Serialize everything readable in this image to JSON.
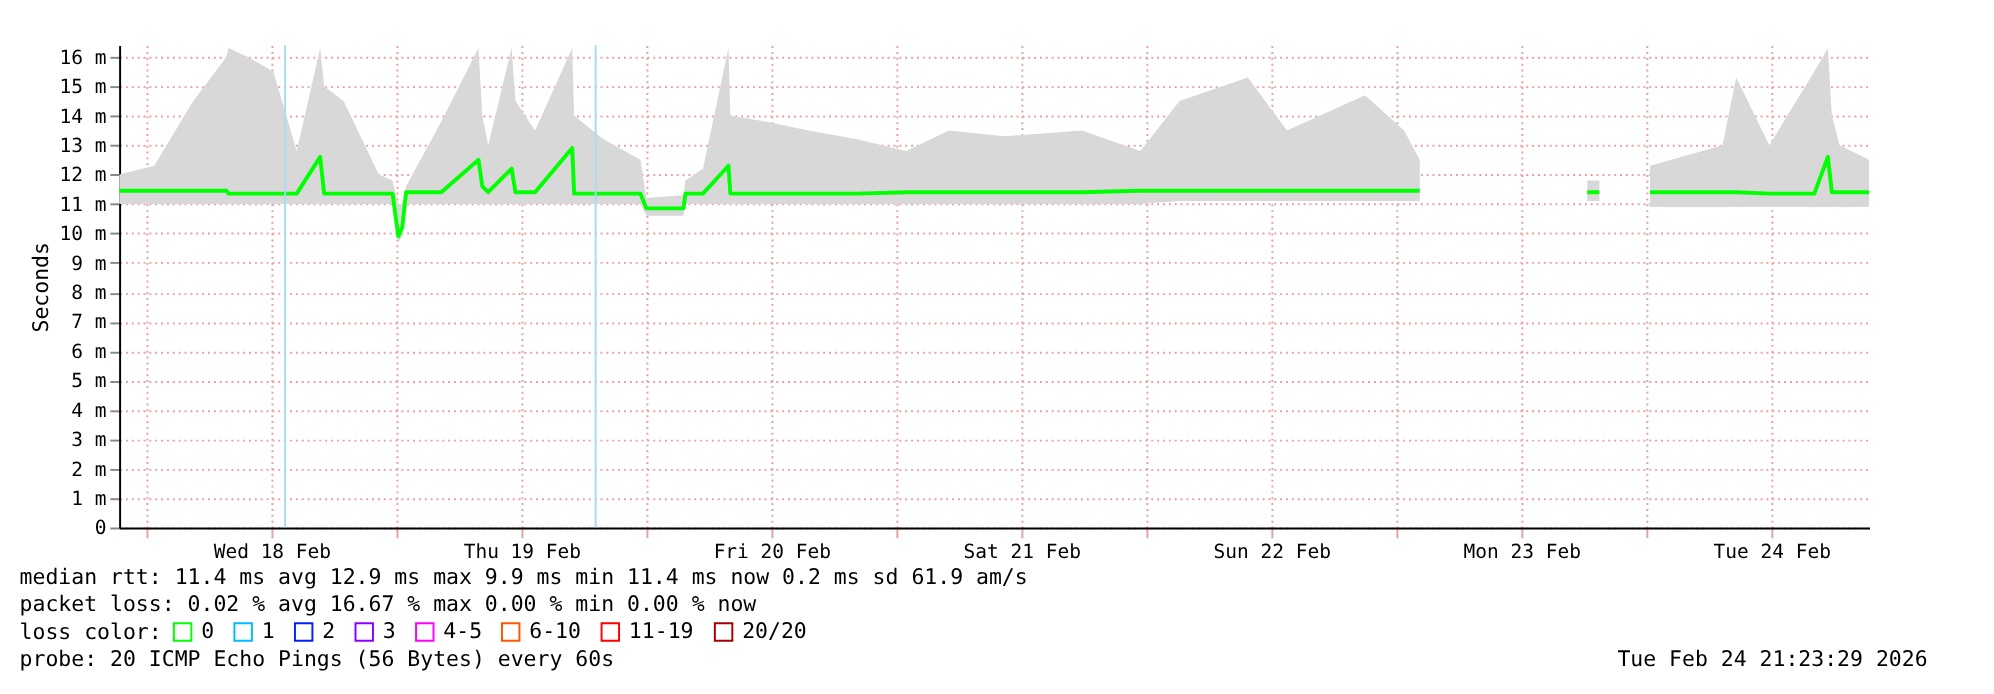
{
  "chart_data": {
    "type": "line",
    "ylabel": "Seconds",
    "xlim": [
      "2026-02-17T21:23",
      "2026-02-24T21:23"
    ],
    "xticks": [
      {
        "value": "2026-02-18T00:00",
        "label": null
      },
      {
        "value": "2026-02-18T12:00",
        "label": "Wed 18 Feb"
      },
      {
        "value": "2026-02-19T00:00",
        "label": null
      },
      {
        "value": "2026-02-19T12:00",
        "label": "Thu 19 Feb"
      },
      {
        "value": "2026-02-20T00:00",
        "label": null
      },
      {
        "value": "2026-02-20T12:00",
        "label": "Fri 20 Feb"
      },
      {
        "value": "2026-02-21T00:00",
        "label": null
      },
      {
        "value": "2026-02-21T12:00",
        "label": "Sat 21 Feb"
      },
      {
        "value": "2026-02-22T00:00",
        "label": null
      },
      {
        "value": "2026-02-22T12:00",
        "label": "Sun 22 Feb"
      },
      {
        "value": "2026-02-23T00:00",
        "label": null
      },
      {
        "value": "2026-02-23T12:00",
        "label": "Mon 23 Feb"
      },
      {
        "value": "2026-02-24T00:00",
        "label": null
      },
      {
        "value": "2026-02-24T12:00",
        "label": "Tue 24 Feb"
      }
    ],
    "ylim": [
      0,
      16.4
    ],
    "yticks": [
      0,
      {
        "value": 1,
        "label": "1 m"
      },
      {
        "value": 2,
        "label": "2 m"
      },
      {
        "value": 3,
        "label": "3 m"
      },
      {
        "value": 4,
        "label": "4 m"
      },
      {
        "value": 5,
        "label": "5 m"
      },
      {
        "value": 6,
        "label": "6 m"
      },
      {
        "value": 7,
        "label": "7 m"
      },
      {
        "value": 8,
        "label": "8 m"
      },
      {
        "value": 9,
        "label": "9 m"
      },
      {
        "value": 10,
        "label": "10 m"
      },
      {
        "value": 11,
        "label": "11 m"
      },
      {
        "value": 12,
        "label": "12 m"
      },
      {
        "value": 13,
        "label": "13 m"
      },
      {
        "value": 14,
        "label": "14 m"
      },
      {
        "value": 15,
        "label": "15 m"
      },
      {
        "value": 16,
        "label": "16 m"
      }
    ],
    "grid": true,
    "legend": "bottom left",
    "legend_title": "loss color:",
    "series": [
      {
        "name": "0",
        "color": "#00ff00",
        "x": [
          "2026-02-17T21:23",
          "2026-02-18T00:45",
          "2026-02-18T04:30",
          "2026-02-18T07:41",
          "2026-02-18T07:53",
          "2026-02-18T09:45",
          "2026-02-18T12:11",
          "2026-02-18T14:26",
          "2026-02-18T16:41",
          "2026-02-18T17:04",
          "2026-02-18T18:56",
          "2026-02-18T22:19",
          "2026-02-18T23:38",
          "2026-02-19T00:11",
          "2026-02-19T00:34",
          "2026-02-19T00:56",
          "2026-02-19T04:19",
          "2026-02-19T07:53",
          "2026-02-19T08:15",
          "2026-02-19T08:49",
          "2026-02-19T11:04",
          "2026-02-19T11:26",
          "2026-02-19T13:19",
          "2026-02-19T16:53",
          "2026-02-19T17:04",
          "2026-02-19T19:53",
          "2026-02-19T23:26",
          "2026-02-20T00:00",
          "2026-02-20T03:34",
          "2026-02-20T03:45",
          "2026-02-20T05:26",
          "2026-02-20T07:53",
          "2026-02-20T08:04",
          "2026-02-20T11:26",
          "2026-02-20T15:34",
          "2026-02-20T20:15",
          "2026-02-21T00:56",
          "2026-02-21T05:04",
          "2026-02-21T10:19",
          "2026-02-21T17:49",
          "2026-02-21T23:26",
          "2026-02-22T03:11",
          "2026-02-22T09:45",
          "2026-02-22T13:30",
          "2026-02-22T21:00",
          "2026-02-23T00:45",
          "2026-02-23T02:15",
          "2026-02-23T03:00",
          "2026-02-23T18:20",
          "2026-02-23T19:30",
          "2026-02-23T20:00",
          "2026-02-24T00:22",
          "2026-02-24T07:19",
          "2026-02-24T08:38",
          "2026-02-24T11:49",
          "2026-02-24T16:08",
          "2026-02-24T17:26",
          "2026-02-24T17:49",
          "2026-02-24T18:34",
          "2026-02-24T21:23"
        ],
        "values": [
          11.45,
          11.45,
          11.45,
          11.45,
          11.35,
          11.35,
          11.35,
          11.35,
          12.6,
          11.35,
          11.35,
          11.35,
          11.35,
          9.9,
          10.2,
          11.4,
          11.4,
          12.5,
          11.6,
          11.4,
          12.2,
          11.4,
          11.4,
          12.9,
          11.35,
          11.35,
          11.35,
          10.85,
          10.85,
          11.35,
          11.35,
          12.3,
          11.35,
          11.35,
          11.35,
          11.35,
          11.4,
          11.4,
          11.4,
          11.4,
          11.45,
          11.45,
          11.45,
          11.45,
          11.45,
          11.45,
          11.45,
          null,
          11.4,
          11.4,
          null,
          11.4,
          11.4,
          11.4,
          11.35,
          11.35,
          12.6,
          11.4,
          11.4,
          11.4
        ],
        "lower": [
          11.0,
          11.0,
          11.0,
          11.0,
          11.0,
          11.0,
          11.0,
          11.0,
          11.0,
          11.0,
          11.0,
          11.0,
          11.0,
          9.7,
          9.9,
          11.0,
          11.0,
          11.0,
          11.0,
          11.0,
          11.0,
          11.0,
          11.0,
          11.0,
          11.0,
          11.0,
          11.0,
          10.6,
          10.6,
          11.0,
          11.0,
          11.0,
          11.0,
          11.0,
          11.0,
          11.0,
          11.0,
          11.0,
          11.0,
          11.0,
          11.0,
          11.1,
          11.1,
          11.1,
          11.1,
          11.1,
          11.1,
          null,
          11.1,
          11.1,
          null,
          10.9,
          10.9,
          10.9,
          10.9,
          10.9,
          10.9,
          10.9,
          10.9,
          10.9
        ],
        "upper": [
          12.0,
          12.3,
          14.5,
          16.0,
          16.3,
          16.0,
          15.5,
          12.8,
          16.3,
          15.0,
          14.5,
          12.0,
          11.8,
          11.0,
          11.0,
          11.6,
          13.8,
          16.3,
          14.0,
          13.0,
          16.3,
          14.5,
          13.5,
          16.3,
          14.0,
          13.2,
          12.5,
          11.2,
          11.3,
          11.8,
          12.2,
          16.3,
          14.0,
          13.8,
          13.5,
          13.2,
          12.8,
          13.5,
          13.3,
          13.5,
          12.8,
          14.5,
          15.3,
          13.5,
          14.7,
          13.5,
          12.5,
          null,
          11.8,
          11.8,
          null,
          12.3,
          13.0,
          15.3,
          13.0,
          15.5,
          16.3,
          14.0,
          13.0,
          12.5
        ]
      },
      {
        "name": "1",
        "color": "#00bbff"
      },
      {
        "name": "2",
        "color": "#0022ff"
      },
      {
        "name": "3",
        "color": "#8a00ff"
      },
      {
        "name": "4-5",
        "color": "#ff00ff"
      },
      {
        "name": "6-10",
        "color": "#ff5500"
      },
      {
        "name": "11-19",
        "color": "#ff0000"
      },
      {
        "name": "20/20",
        "color": "#a10000"
      }
    ],
    "ref_lines": [
      {
        "axis": "x",
        "value": "2026-02-18T13:19",
        "label": null,
        "color": "#a8dcf0"
      },
      {
        "axis": "x",
        "value": "2026-02-19T19:08",
        "label": null,
        "color": "#a8dcf0"
      }
    ],
    "annotations": [
      "median rtt:  11.4 ms avg  12.9 ms max  9.9 ms min  11.4 ms now  0.2 ms sd  61.9   am/s",
      "packet loss: 0.02 % avg  16.67 % max  0.00 % min  0.00 % now",
      "probe:       20 ICMP Echo Pings (56 Bytes) every 60s",
      "Tue Feb 24 21:23:29 2026"
    ]
  }
}
